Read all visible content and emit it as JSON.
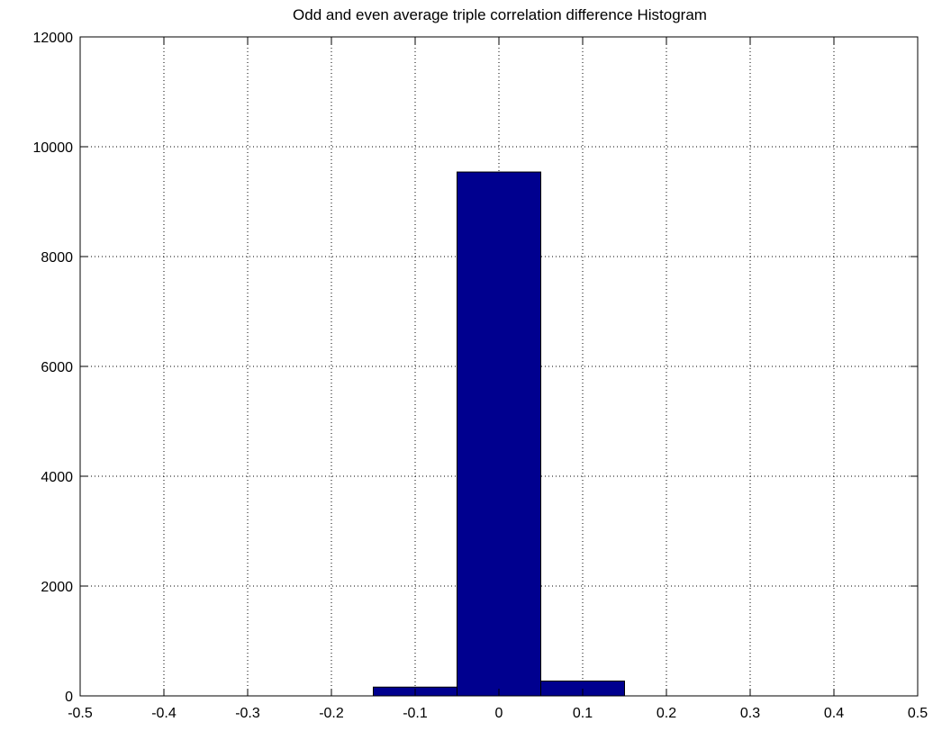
{
  "chart_data": {
    "type": "bar",
    "title": "Odd and even average triple correlation difference Histogram",
    "xlabel": "",
    "ylabel": "",
    "xlim": [
      -0.5,
      0.5
    ],
    "ylim": [
      0,
      12000
    ],
    "grid": true,
    "x_ticks": [
      -0.5,
      -0.4,
      -0.3,
      -0.2,
      -0.1,
      0,
      0.1,
      0.2,
      0.3,
      0.4,
      0.5
    ],
    "x_tick_labels": [
      "-0.5",
      "-0.4",
      "-0.3",
      "-0.2",
      "-0.1",
      "0",
      "0.1",
      "0.2",
      "0.3",
      "0.4",
      "0.5"
    ],
    "y_ticks": [
      0,
      2000,
      4000,
      6000,
      8000,
      10000,
      12000
    ],
    "y_tick_labels": [
      "0",
      "2000",
      "4000",
      "6000",
      "8000",
      "10000",
      "12000"
    ],
    "bin_edges": [
      -0.15,
      -0.05,
      0.05,
      0.15
    ],
    "bin_centers": [
      -0.1,
      0,
      0.1
    ],
    "values": [
      160,
      9540,
      270
    ],
    "bar_color": "#00008f",
    "bar_edge_color": "#000000"
  }
}
